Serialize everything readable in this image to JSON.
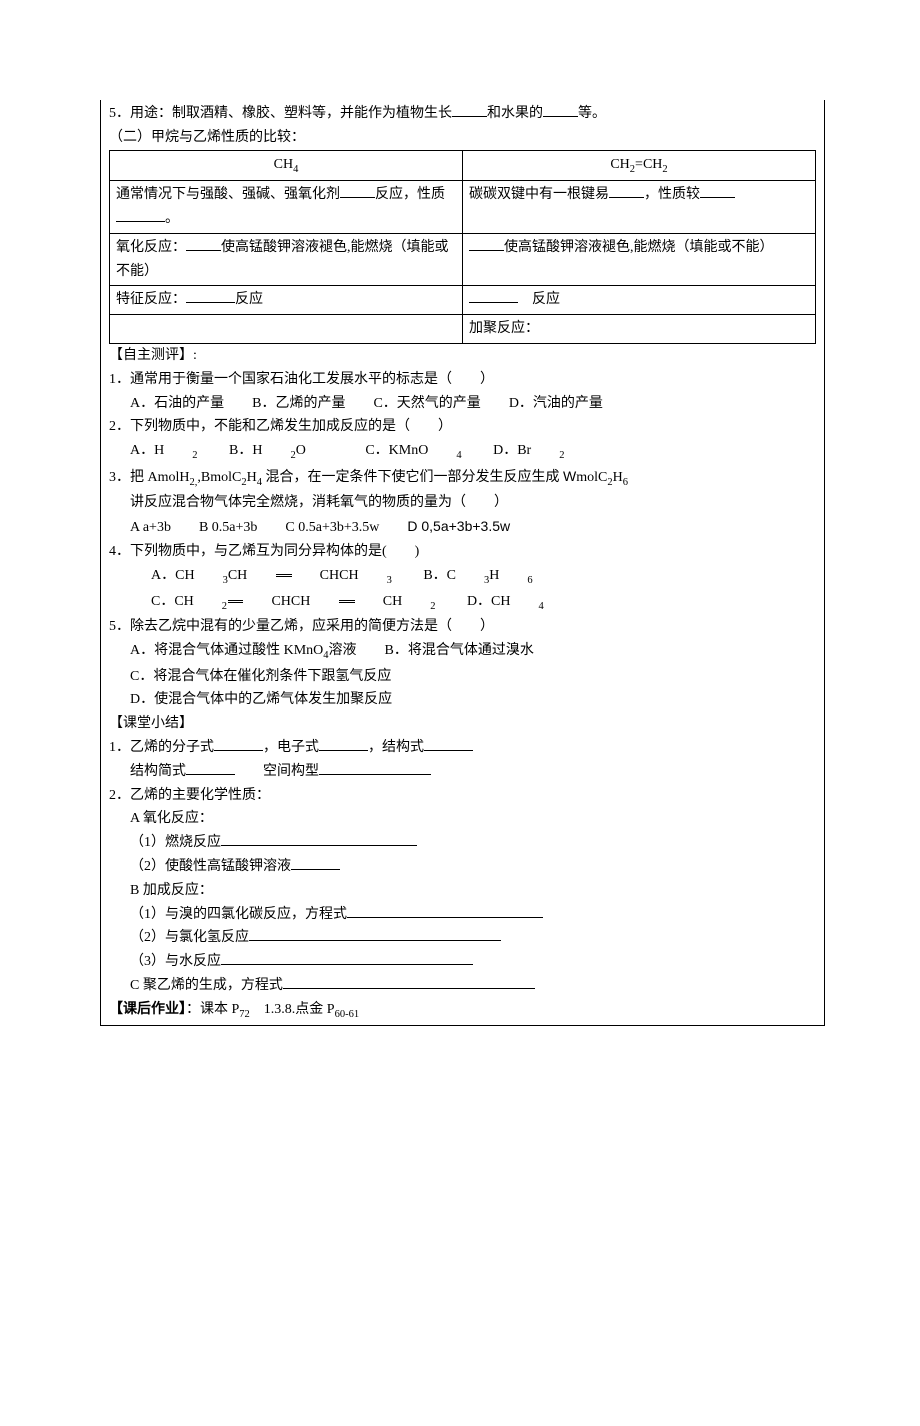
{
  "top": {
    "line5": "5．用途：制取酒精、橡胶、塑料等，并能作为植物生长",
    "line5b": "和水果的",
    "line5c": "等。",
    "sec2_title": "（二）甲烷与乙烯性质的比较："
  },
  "table": {
    "h1": "CH",
    "h1sub": "4",
    "h2a": "CH",
    "h2sub1": "2",
    "h2eq": "=CH",
    "h2sub2": "2",
    "r1c1a": "通常情况下与强酸、强碱、强氧化剂",
    "r1c1b": "反应，性质",
    "r1c1c": "。",
    "r1c2a": "碳碳双键中有一根键易",
    "r1c2b": "，性质较",
    "r2c1a": "氧化反应：",
    "r2c1b": "使高锰酸钾溶液褪色,能燃烧（填能或不能）",
    "r2c2a": "",
    "r2c2b": "使高锰酸钾溶液褪色,能燃烧（填能或不能）",
    "r3c1a": "特征反应：",
    "r3c1b": "反应",
    "r3c2b": "反应",
    "r4c2": "加聚反应："
  },
  "selftest": {
    "heading": "【自主测评】:",
    "q1": "1．通常用于衡量一个国家石油化工发展水平的标志是（　　）",
    "q1a": "A．石油的产量",
    "q1b": "B．乙烯的产量",
    "q1c": "C．天然气的产量",
    "q1d": "D．汽油的产量",
    "q2": "2．下列物质中，不能和乙烯发生加成反应的是（　　）",
    "q2a": "A．H",
    "q2a_sub": "2",
    "q2b": "B．H",
    "q2b_sub": "2",
    "q2b_tail": "O",
    "q2c": "C．KMnO",
    "q2c_sub": "4",
    "q2d": "D．Br",
    "q2d_sub": "2",
    "q3a": "3．把 AmolH",
    "q3a_sub1": "2,",
    "q3a_mid": ",BmolC",
    "q3a_sub2": "2",
    "q3a_mid2": "H",
    "q3a_sub3": "4",
    "q3a_mid3": " 混合，在一定条件下使它们一部分发生反应生成 ",
    "q3a_w": "W",
    "q3a_mid4": "molC",
    "q3a_sub4": "2",
    "q3a_mid5": "H",
    "q3a_sub5": "6",
    "q3b": "讲反应混合物气体完全燃烧，消耗氧气的物质的量为（　　）",
    "q3o_a": "A a+3b",
    "q3o_b": "B 0.5a+3b",
    "q3o_c": "C 0.5a+3b+3.5w",
    "q3o_d": "D 0,5a+3b+3.5w",
    "q4": "4．下列物质中，与乙烯互为同分异构体的是(　　)",
    "q4a_pre": "A．CH",
    "q4a_sub1": "3",
    "q4a_mid": "CH",
    "q4a_mid2": "CHCH",
    "q4a_sub2": "3",
    "q4b_pre": "B．C",
    "q4b_sub1": "3",
    "q4b_mid": "H",
    "q4b_sub2": "6",
    "q4c_pre": "C．CH",
    "q4c_sub1": "2",
    "q4c_mid": "CHCH",
    "q4c_mid2": "CH",
    "q4c_sub2": "2",
    "q4d_pre": "D．CH",
    "q4d_sub": "4",
    "q5": "5．除去乙烷中混有的少量乙烯，应采用的简便方法是（　　）",
    "q5a": "A．将混合气体通过酸性 KMnO",
    "q5a_sub": "4",
    "q5a_tail": "溶液",
    "q5b": "B．将混合气体通过溴水",
    "q5c": "C．将混合气体在催化剂条件下跟氢气反应",
    "q5d": "D．使混合气体中的乙烯气体发生加聚反应"
  },
  "summary": {
    "heading": "【课堂小结】",
    "l1a": "1．乙烯的分子式",
    "l1b": "，电子式",
    "l1c": "，结构式",
    "l2a": "结构简式",
    "l2b": "空间构型",
    "l3": "2．乙烯的主要化学性质：",
    "l4": "A 氧化反应：",
    "l5": "（1）燃烧反应",
    "l6": "（2）使酸性高锰酸钾溶液",
    "l7": "B 加成反应：",
    "l8": "（1）与溴的四氯化碳反应，方程式",
    "l9": "（2）与氯化氢反应",
    "l10": "（3）与水反应",
    "l11": "C 聚乙烯的生成，方程式"
  },
  "homework": {
    "heading": "【课后作业】",
    "tail_a": "：课本 P",
    "tail_sub1": "72",
    "tail_b": "　1.3.8.点金 P",
    "tail_sub2": "60-61"
  }
}
